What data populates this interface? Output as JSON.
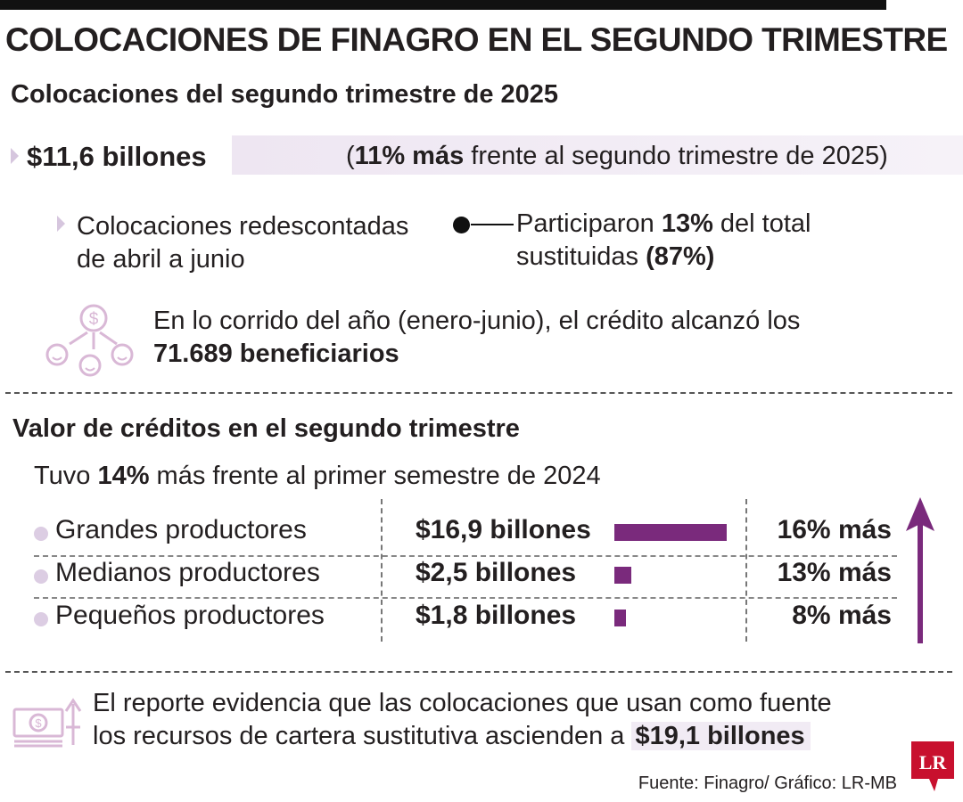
{
  "header": {
    "title": "COLOCACIONES DE FINAGRO EN EL SEGUNDO TRIMESTRE",
    "subtitle": "Colocaciones del segundo trimestre de 2025"
  },
  "summary": {
    "amount": "$11,6 billones",
    "growth_open": "(",
    "growth_bold": "11% más",
    "growth_rest": " frente al segundo trimestre de 2025)",
    "redescontadas_line1": "Colocaciones redescontadas",
    "redescontadas_line2": "de abril a junio",
    "particip_pre": "Participaron ",
    "particip_bold": "13%",
    "particip_post": " del total",
    "sustituidas_pre": "sustituidas ",
    "sustituidas_bold": "(87%)",
    "beneficiarios_line1": "En lo corrido del año (enero-junio), el crédito alcanzó los",
    "beneficiarios_bold": "71.689 beneficiarios"
  },
  "section2": {
    "title": "Valor de créditos en el segundo trimestre",
    "tuvo_pre": "Tuvo ",
    "tuvo_bold": "14%",
    "tuvo_post": " más frente al primer semestre de 2024"
  },
  "chart_data": {
    "type": "bar",
    "title": "Valor de créditos en el segundo trimestre",
    "unit": "billones de pesos",
    "categories": [
      "Grandes productores",
      "Medianos productores",
      "Pequeños productores"
    ],
    "values": [
      16.9,
      2.5,
      1.8
    ],
    "value_labels": [
      "$16,9 billones",
      "$2,5 billones",
      "$1,8 billones"
    ],
    "growth_labels": [
      "16% más",
      "13% más",
      "8% más"
    ],
    "growth_pct": [
      16,
      13,
      8
    ],
    "max_value": 16.9
  },
  "footer": {
    "note_line1": "El reporte evidencia que las colocaciones que usan como fuente",
    "note_line2_pre": "los recursos de cartera sustitutiva ascienden a ",
    "note_line2_bold": "$19,1 billones",
    "source": "Fuente: Finagro/ Gráfico: LR-MB",
    "logo": "LR"
  },
  "colors": {
    "accent": "#7a2a7c",
    "light_purple": "#dccde3",
    "icon_pink": "#d9b8d6"
  }
}
